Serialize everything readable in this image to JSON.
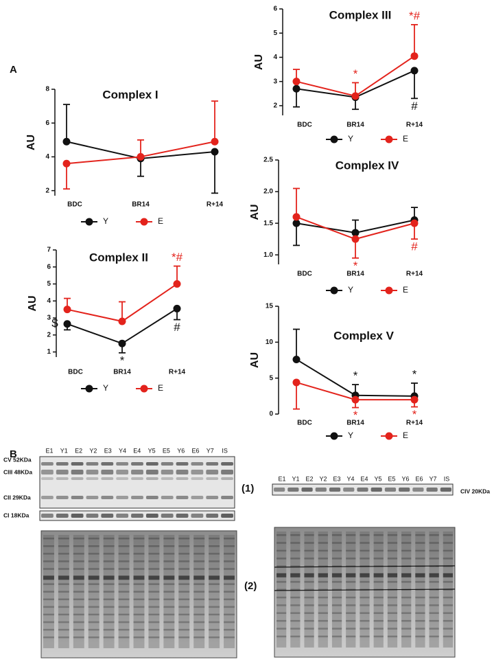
{
  "panel_labels": [
    "A",
    "B"
  ],
  "chart_data": [
    {
      "type": "line",
      "title": "Complex I",
      "y_label": "AU",
      "categories": [
        "BDC",
        "BR14",
        "R+14"
      ],
      "ylim": [
        1.7,
        8
      ],
      "yticks": [
        2,
        4,
        6,
        8
      ],
      "series": [
        {
          "name": "Y",
          "color": "#111111",
          "values": [
            4.9,
            3.9,
            4.3
          ],
          "errors": [
            2.2,
            1.05,
            2.45
          ],
          "error_side": [
            "up",
            "down",
            "down"
          ]
        },
        {
          "name": "E",
          "color": "#e3231c",
          "values": [
            3.6,
            4.0,
            4.9
          ],
          "errors": [
            1.5,
            1.0,
            2.4
          ],
          "error_side": [
            "down",
            "up",
            "up"
          ]
        }
      ],
      "annotations": []
    },
    {
      "type": "line",
      "title": "Complex II",
      "y_label": "AU",
      "categories": [
        "BDC",
        "BR14",
        "R+14"
      ],
      "ylim": [
        0.7,
        7
      ],
      "yticks": [
        1,
        2,
        3,
        4,
        5,
        6,
        7
      ],
      "series": [
        {
          "name": "Y",
          "color": "#111111",
          "values": [
            2.65,
            1.5,
            3.55
          ],
          "errors": [
            0.35,
            0.55,
            0.65
          ],
          "error_side": [
            "down",
            "down",
            "down"
          ]
        },
        {
          "name": "E",
          "color": "#e3231c",
          "values": [
            3.5,
            2.8,
            5.0
          ],
          "errors": [
            0.65,
            1.15,
            1.05
          ],
          "error_side": [
            "up",
            "up",
            "up"
          ]
        }
      ],
      "annotations": [
        {
          "text": "$",
          "color": "#111111",
          "series": "Y",
          "category": "BDC",
          "side": "left"
        },
        {
          "text": "*",
          "color": "#111111",
          "series": "Y",
          "category": "BR14",
          "side": "below"
        },
        {
          "text": "#",
          "color": "#111111",
          "series": "Y",
          "category": "R+14",
          "side": "below"
        },
        {
          "text": "*#",
          "color": "#e3231c",
          "series": "E",
          "category": "R+14",
          "side": "above"
        }
      ]
    },
    {
      "type": "line",
      "title": "Complex III",
      "y_label": "AU",
      "categories": [
        "BDC",
        "BR14",
        "R+14"
      ],
      "ylim": [
        1.6,
        6
      ],
      "yticks": [
        2,
        3,
        4,
        5,
        6
      ],
      "series": [
        {
          "name": "Y",
          "color": "#111111",
          "values": [
            2.7,
            2.35,
            3.45
          ],
          "errors": [
            0.75,
            0.5,
            1.15
          ],
          "error_side": [
            "down",
            "down",
            "down"
          ]
        },
        {
          "name": "E",
          "color": "#e3231c",
          "values": [
            3.0,
            2.4,
            4.05
          ],
          "errors": [
            0.5,
            0.55,
            1.3
          ],
          "error_side": [
            "up",
            "up",
            "up"
          ]
        }
      ],
      "annotations": [
        {
          "text": "*",
          "color": "#e3231c",
          "series": "E",
          "category": "BR14",
          "side": "above"
        },
        {
          "text": "*#",
          "color": "#e3231c",
          "series": "E",
          "category": "R+14",
          "side": "above"
        },
        {
          "text": "#",
          "color": "#111111",
          "series": "Y",
          "category": "R+14",
          "side": "below"
        }
      ]
    },
    {
      "type": "line",
      "title": "Complex IV",
      "y_label": "AU",
      "categories": [
        "BDC",
        "BR14",
        "R+14"
      ],
      "ylim": [
        0.85,
        2.5
      ],
      "yticks": [
        {
          "value": 1,
          "label": "1.0"
        },
        1.5,
        {
          "value": 2,
          "label": "2.0"
        },
        2.5
      ],
      "series": [
        {
          "name": "Y",
          "color": "#111111",
          "values": [
            1.5,
            1.35,
            1.55
          ],
          "errors": [
            0.35,
            0.2,
            0.2
          ],
          "error_side": [
            "down",
            "up",
            "up"
          ]
        },
        {
          "name": "E",
          "color": "#e3231c",
          "values": [
            1.6,
            1.25,
            1.5
          ],
          "errors": [
            0.45,
            0.3,
            0.25
          ],
          "error_side": [
            "up",
            "down",
            "down"
          ]
        }
      ],
      "annotations": [
        {
          "text": "*",
          "color": "#e3231c",
          "series": "E",
          "category": "BR14",
          "side": "below"
        },
        {
          "text": "#",
          "color": "#e3231c",
          "series": "E",
          "category": "R+14",
          "side": "below"
        }
      ]
    },
    {
      "type": "line",
      "title": "Complex V",
      "y_label": "AU",
      "categories": [
        "BDC",
        "BR14",
        "R+14"
      ],
      "ylim": [
        0,
        15
      ],
      "yticks": [
        0,
        5,
        10,
        15
      ],
      "series": [
        {
          "name": "Y",
          "color": "#111111",
          "values": [
            7.6,
            2.6,
            2.5
          ],
          "errors": [
            4.2,
            1.5,
            1.8
          ],
          "error_side": [
            "up",
            "up",
            "up"
          ]
        },
        {
          "name": "E",
          "color": "#e3231c",
          "values": [
            4.4,
            2.0,
            2.0
          ],
          "errors": [
            3.7,
            1.1,
            1.0
          ],
          "error_side": [
            "down",
            "down",
            "down"
          ]
        }
      ],
      "annotations": [
        {
          "text": "*",
          "color": "#111111",
          "series": "Y",
          "category": "BR14",
          "side": "above"
        },
        {
          "text": "*",
          "color": "#111111",
          "series": "Y",
          "category": "R+14",
          "side": "above"
        },
        {
          "text": "*",
          "color": "#e3231c",
          "series": "E",
          "category": "BR14",
          "side": "below"
        },
        {
          "text": "*",
          "color": "#e3231c",
          "series": "E",
          "category": "R+14",
          "side": "below"
        }
      ]
    }
  ],
  "blots": {
    "lanes_left": [
      "E1",
      "Y1",
      "E2",
      "Y2",
      "E3",
      "Y4",
      "E4",
      "Y5",
      "E5",
      "Y6",
      "E6",
      "Y7",
      "IS"
    ],
    "lanes_right": [
      "E1",
      "Y1",
      "E2",
      "Y2",
      "E3",
      "Y4",
      "E4",
      "Y5",
      "E5",
      "Y6",
      "E6",
      "Y7",
      "IS"
    ],
    "bands_left": [
      "CV 52KDa",
      "CIII 48KDa",
      "CII 29KDa",
      "CI 18KDa"
    ],
    "band_right": "CIV 20KDa",
    "row_labels": [
      "(1)",
      "(2)"
    ]
  }
}
